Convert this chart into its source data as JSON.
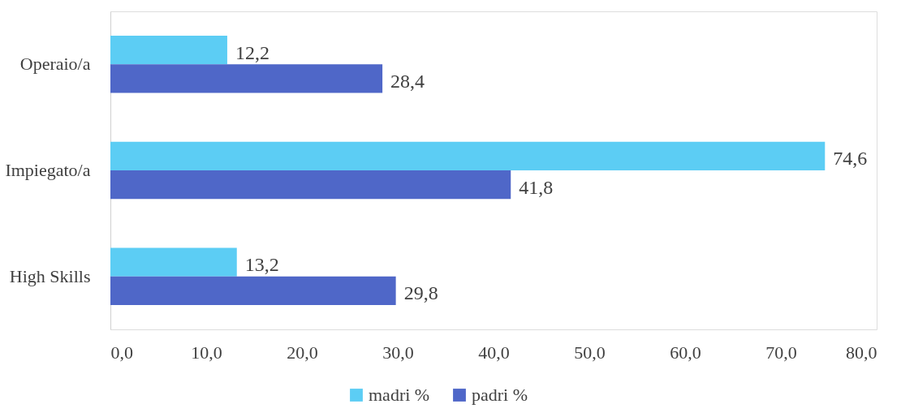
{
  "chart_data": {
    "type": "bar",
    "orientation": "horizontal",
    "categories": [
      "Operaio/a",
      "Impiegato/a",
      "High Skills"
    ],
    "series": [
      {
        "name": "madri %",
        "color": "#5ccdf4",
        "values": [
          12.2,
          74.6,
          13.2
        ],
        "value_labels": [
          "12,2",
          "74,6",
          "13,2"
        ]
      },
      {
        "name": "padri %",
        "color": "#4f67c8",
        "values": [
          28.4,
          41.8,
          29.8
        ],
        "value_labels": [
          "28,4",
          "41,8",
          "29,8"
        ]
      }
    ],
    "xlim": [
      0,
      80
    ],
    "xticks": [
      {
        "value": 0,
        "label": "0,0"
      },
      {
        "value": 10,
        "label": "10,0"
      },
      {
        "value": 20,
        "label": "20,0"
      },
      {
        "value": 30,
        "label": "30,0"
      },
      {
        "value": 40,
        "label": "40,0"
      },
      {
        "value": 50,
        "label": "50,0"
      },
      {
        "value": 60,
        "label": "60,0"
      },
      {
        "value": 70,
        "label": "70,0"
      },
      {
        "value": 80,
        "label": "80,0"
      }
    ],
    "grid": false,
    "legend": "bottom"
  }
}
